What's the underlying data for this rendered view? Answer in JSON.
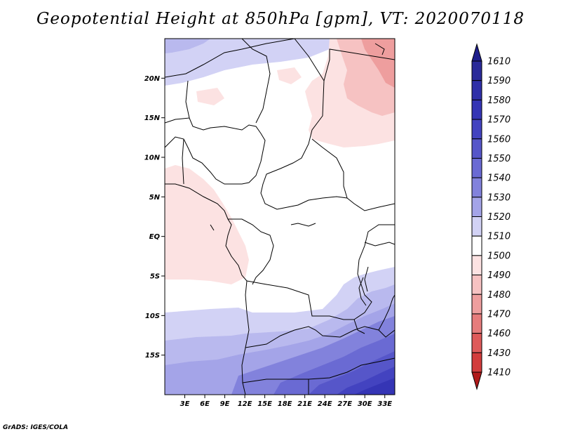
{
  "title": "Geopotential Height at 850hPa [gpm], VT: 2020070118",
  "credit": "GrADS: IGES/COLA",
  "map": {
    "lat_labels": [
      {
        "lat": 20,
        "label": "20N"
      },
      {
        "lat": 15,
        "label": "15N"
      },
      {
        "lat": 10,
        "label": "10N"
      },
      {
        "lat": 5,
        "label": "5N"
      },
      {
        "lat": 0,
        "label": "EQ"
      },
      {
        "lat": -5,
        "label": "5S"
      },
      {
        "lat": -10,
        "label": "10S"
      },
      {
        "lat": -15,
        "label": "15S"
      }
    ],
    "lon_labels": [
      {
        "lon": 3,
        "label": "3E"
      },
      {
        "lon": 6,
        "label": "6E"
      },
      {
        "lon": 9,
        "label": "9E"
      },
      {
        "lon": 12,
        "label": "12E"
      },
      {
        "lon": 15,
        "label": "15E"
      },
      {
        "lon": 18,
        "label": "18E"
      },
      {
        "lon": 21,
        "label": "21E"
      },
      {
        "lon": 24,
        "label": "24E"
      },
      {
        "lon": 27,
        "label": "27E"
      },
      {
        "lon": 30,
        "label": "30E"
      },
      {
        "lon": 33,
        "label": "33E"
      }
    ],
    "lon_range": [
      0,
      34.5
    ],
    "lat_range": [
      -20,
      25
    ]
  },
  "colorbar": {
    "levels": [
      {
        "label": "1610",
        "color": "#2a2a99"
      },
      {
        "label": "1590",
        "color": "#2f2fa8"
      },
      {
        "label": "1580",
        "color": "#3535b5"
      },
      {
        "label": "1570",
        "color": "#4343c0"
      },
      {
        "label": "1560",
        "color": "#5656c9"
      },
      {
        "label": "1550",
        "color": "#6a6ad3"
      },
      {
        "label": "1540",
        "color": "#8282dc"
      },
      {
        "label": "1530",
        "color": "#a4a4e8"
      },
      {
        "label": "1520",
        "color": "#d2d2f5"
      },
      {
        "label": "1510",
        "color": "#ffffff"
      },
      {
        "label": "1500",
        "color": "#fce2e2"
      },
      {
        "label": "1490",
        "color": "#f6c2c2"
      },
      {
        "label": "1480",
        "color": "#ee9e9e"
      },
      {
        "label": "1470",
        "color": "#e67c7c"
      },
      {
        "label": "1460",
        "color": "#de5a5a"
      },
      {
        "label": "1430",
        "color": "#d23c3c"
      },
      {
        "label": "1410",
        "color": "#c42222"
      }
    ],
    "top_color": "#1e1e8c",
    "bottom_color": "#b01a1a"
  }
}
